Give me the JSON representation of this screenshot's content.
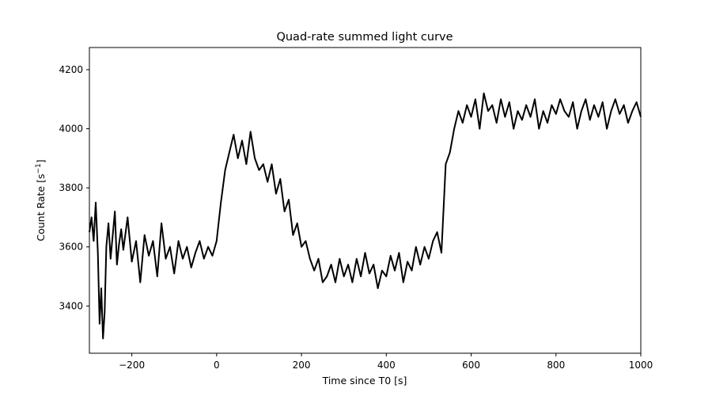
{
  "chart_data": {
    "type": "line",
    "title": "Quad-rate summed light curve",
    "xlabel": "Time since T0 [s]",
    "ylabel_main": "Count Rate [s",
    "ylabel_sup": "−1",
    "ylabel_end": "]",
    "xlim": [
      -300,
      1000
    ],
    "ylim": [
      3240,
      4275
    ],
    "xticks": [
      -200,
      0,
      200,
      400,
      600,
      800,
      1000
    ],
    "xtick_labels": [
      "−200",
      "0",
      "200",
      "400",
      "600",
      "800",
      "1000"
    ],
    "yticks": [
      3400,
      3600,
      3800,
      4000,
      4200
    ],
    "ytick_labels": [
      "3400",
      "3600",
      "3800",
      "4000",
      "4200"
    ],
    "grid": false,
    "line_color": "#000000",
    "series": [
      {
        "x": [
          -300,
          -295,
          -290,
          -285,
          -280,
          -276,
          -272,
          -268,
          -264,
          -260,
          -255,
          -250,
          -245,
          -240,
          -235,
          -230,
          -225,
          -220,
          -210,
          -200,
          -190,
          -180,
          -170,
          -160,
          -150,
          -140,
          -130,
          -120,
          -110,
          -100,
          -90,
          -80,
          -70,
          -60,
          -50,
          -40,
          -30,
          -20,
          -10,
          0,
          10,
          20,
          30,
          40,
          50,
          60,
          70,
          80,
          90,
          100,
          110,
          120,
          130,
          140,
          150,
          160,
          170,
          180,
          190,
          200,
          210,
          220,
          230,
          240,
          250,
          260,
          270,
          280,
          290,
          300,
          310,
          320,
          330,
          340,
          350,
          360,
          370,
          380,
          390,
          400,
          410,
          420,
          430,
          440,
          450,
          460,
          470,
          480,
          490,
          500,
          510,
          520,
          530,
          540,
          550,
          560,
          570,
          580,
          590,
          600,
          610,
          620,
          630,
          640,
          650,
          660,
          670,
          680,
          690,
          700,
          710,
          720,
          730,
          740,
          750,
          760,
          770,
          780,
          790,
          800,
          810,
          820,
          830,
          840,
          850,
          860,
          870,
          880,
          890,
          900,
          910,
          920,
          930,
          940,
          950,
          960,
          970,
          980,
          990,
          1000
        ],
        "y": [
          3650,
          3700,
          3620,
          3750,
          3580,
          3340,
          3460,
          3290,
          3380,
          3600,
          3680,
          3560,
          3640,
          3720,
          3540,
          3610,
          3660,
          3590,
          3700,
          3550,
          3620,
          3480,
          3640,
          3570,
          3620,
          3500,
          3680,
          3560,
          3600,
          3510,
          3620,
          3560,
          3600,
          3530,
          3580,
          3620,
          3560,
          3600,
          3570,
          3620,
          3750,
          3860,
          3920,
          3980,
          3900,
          3960,
          3880,
          3990,
          3900,
          3860,
          3880,
          3820,
          3880,
          3780,
          3830,
          3720,
          3760,
          3640,
          3680,
          3600,
          3620,
          3560,
          3520,
          3560,
          3480,
          3500,
          3540,
          3480,
          3560,
          3500,
          3540,
          3480,
          3560,
          3500,
          3580,
          3510,
          3540,
          3460,
          3520,
          3500,
          3570,
          3520,
          3580,
          3480,
          3550,
          3520,
          3600,
          3540,
          3600,
          3560,
          3620,
          3650,
          3580,
          3880,
          3920,
          4000,
          4060,
          4020,
          4080,
          4040,
          4100,
          4000,
          4120,
          4060,
          4080,
          4020,
          4100,
          4040,
          4090,
          4000,
          4060,
          4030,
          4080,
          4040,
          4100,
          4000,
          4060,
          4020,
          4080,
          4050,
          4100,
          4060,
          4040,
          4090,
          4000,
          4060,
          4100,
          4030,
          4080,
          4040,
          4090,
          4000,
          4060,
          4100,
          4050,
          4080,
          4020,
          4060,
          4090,
          4040
        ]
      }
    ]
  }
}
